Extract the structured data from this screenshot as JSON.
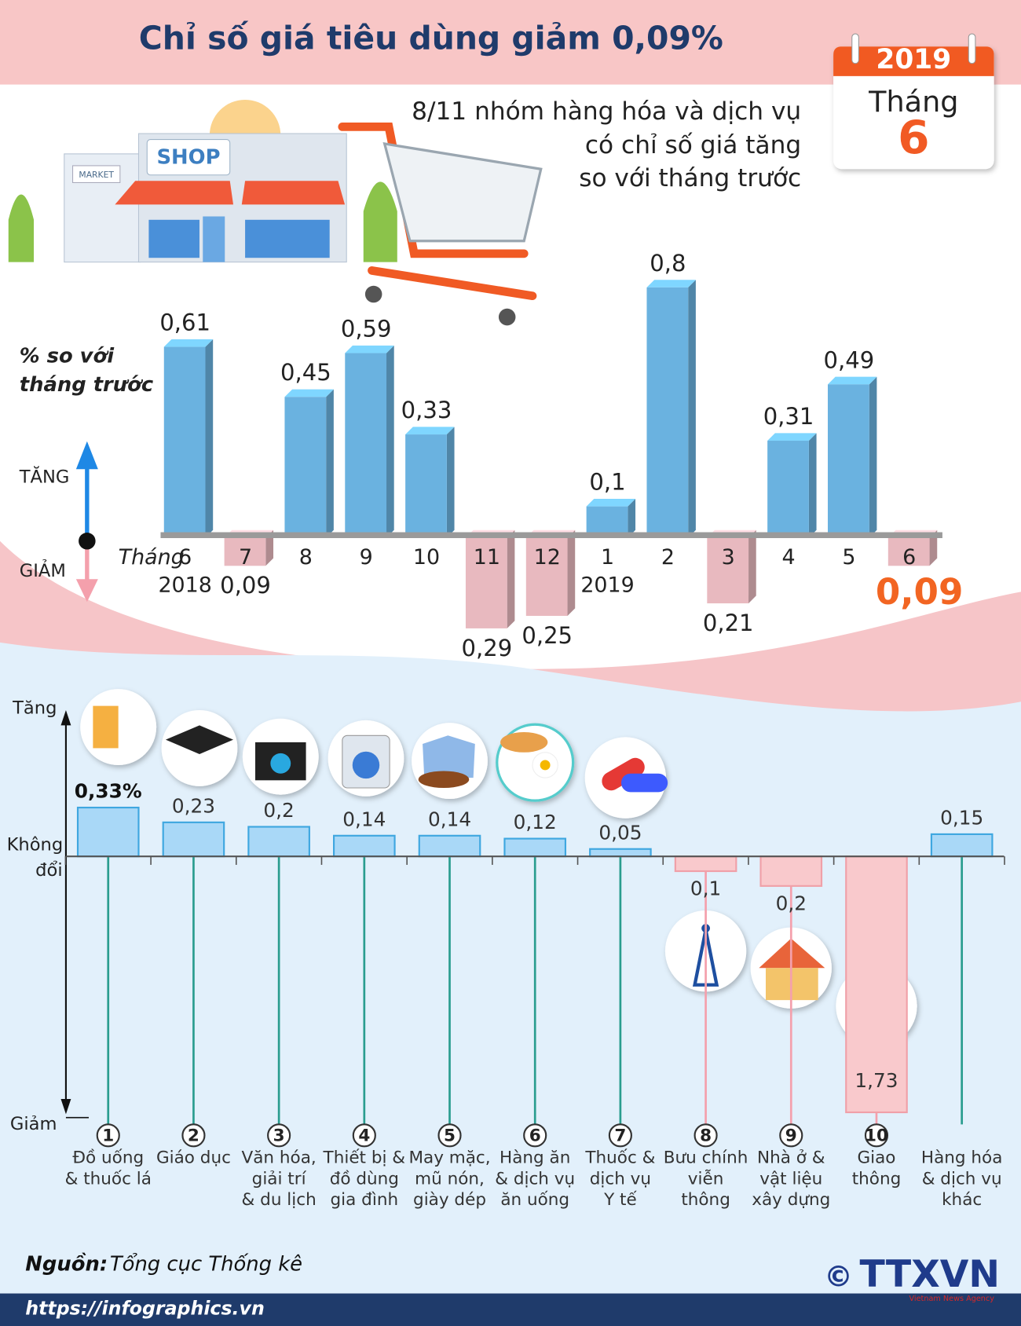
{
  "header": {
    "title": "Chỉ số giá tiêu dùng giảm 0,09%",
    "calendar": {
      "year": "2019",
      "month_label": "Tháng",
      "month": "6"
    },
    "subtitle": [
      "8/11 nhóm hàng hóa và dịch vụ",
      "có chỉ số giá tăng",
      "so với tháng trước"
    ],
    "shop_sign": "SHOP",
    "market_sign": "MARKET"
  },
  "chart_data": [
    {
      "type": "bar3d",
      "ylabel": [
        "% so với",
        "tháng trước"
      ],
      "up_label": "TĂNG",
      "down_label": "GIẢM",
      "xlabel": "Tháng",
      "categories": [
        "6",
        "7",
        "8",
        "9",
        "10",
        "11",
        "12",
        "1",
        "2",
        "3",
        "4",
        "5",
        "6"
      ],
      "years": [
        "2018",
        null,
        null,
        null,
        null,
        null,
        null,
        "2019",
        null,
        null,
        null,
        null,
        null
      ],
      "values": [
        0.61,
        -0.09,
        0.45,
        0.59,
        0.33,
        -0.29,
        -0.25,
        0.1,
        0.8,
        -0.21,
        0.31,
        0.49,
        -0.09
      ],
      "value_labels": [
        "0,61",
        "0,09",
        "0,45",
        "0,59",
        "0,33",
        "0,29",
        "0,25",
        "0,1",
        "0,8",
        "0,21",
        "0,31",
        "0,49",
        "0,09"
      ],
      "ylim": [
        -0.35,
        0.85
      ],
      "positive_color": "#6ab2e0",
      "negative_color": "#e8b9bf"
    },
    {
      "type": "bar",
      "up_label": "Tăng",
      "zero_label": [
        "Không",
        "đổi"
      ],
      "down_label": "Giảm",
      "numbers": [
        "1",
        "2",
        "3",
        "4",
        "5",
        "6",
        "7",
        "8",
        "9",
        "10",
        null
      ],
      "categories": [
        [
          "Đồ uống",
          "& thuốc lá"
        ],
        [
          "Giáo dục"
        ],
        [
          "Văn hóa,",
          "giải trí",
          "& du lịch"
        ],
        [
          "Thiết bị &",
          "đồ dùng",
          "gia đình"
        ],
        [
          "May mặc,",
          "mũ nón,",
          "giày dép"
        ],
        [
          "Hàng ăn",
          "& dịch vụ",
          "ăn uống"
        ],
        [
          "Thuốc &",
          "dịch vụ",
          "Y tế"
        ],
        [
          "Bưu chính",
          "viễn",
          "thông"
        ],
        [
          "Nhà ở &",
          "vật liệu",
          "xây dựng"
        ],
        [
          "Giao",
          "thông"
        ],
        [
          "Hàng hóa",
          "& dịch vụ",
          "khác"
        ]
      ],
      "values": [
        0.33,
        0.23,
        0.2,
        0.14,
        0.14,
        0.12,
        0.05,
        -0.1,
        -0.2,
        -1.73,
        0.15
      ],
      "value_labels": [
        "0,33%",
        "0,23",
        "0,2",
        "0,14",
        "0,14",
        "0,12",
        "0,05",
        "0,1",
        "0,2",
        "1,73",
        "0,15"
      ],
      "ylim": [
        -1.8,
        1.0
      ],
      "positive_color": "#a9d8f7",
      "negative_color": "#f9c9cc"
    }
  ],
  "footer": {
    "source_label": "Nguồn:",
    "source": "Tổng cục Thống kê",
    "url": "https://infographics.vn",
    "copyright": "©",
    "agency": "TTXVN",
    "agency_sub": "Vietnam News Agency"
  }
}
